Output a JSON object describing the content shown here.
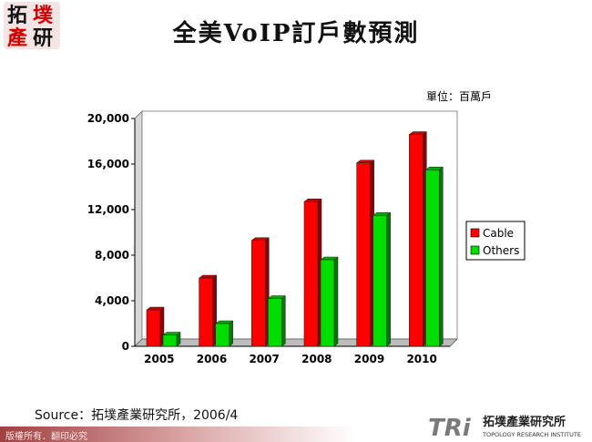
{
  "header": {
    "logo_chars": [
      "拓",
      "墣",
      "產",
      "研"
    ],
    "title": "全美VoIP訂戶數預測"
  },
  "unit_label": "單位：百萬戶",
  "chart_data": {
    "type": "bar",
    "categories": [
      "2005",
      "2006",
      "2007",
      "2008",
      "2009",
      "2010"
    ],
    "series": [
      {
        "name": "Cable",
        "color": "#ff0000",
        "values": [
          3200,
          6000,
          9300,
          12700,
          16100,
          18600
        ]
      },
      {
        "name": "Others",
        "color": "#00dd00",
        "values": [
          1000,
          2000,
          4200,
          7600,
          11500,
          15500
        ]
      }
    ],
    "yticks": [
      "20,000",
      "16,000",
      "12,000",
      "8,000",
      "4,000",
      "0"
    ],
    "ytick_values": [
      20000,
      16000,
      12000,
      8000,
      4000,
      0
    ],
    "ylim": [
      0,
      20000
    ],
    "grid": false,
    "legend": "right"
  },
  "footer": {
    "source": "Source：拓墣產業研究所，2006/4",
    "copyright": "版權所有．翻印必究",
    "brand_mark": "TRi",
    "brand_cn": "拓墣產業研究所",
    "brand_en": "TOPOLOGY RESEARCH INSTITUTE"
  }
}
